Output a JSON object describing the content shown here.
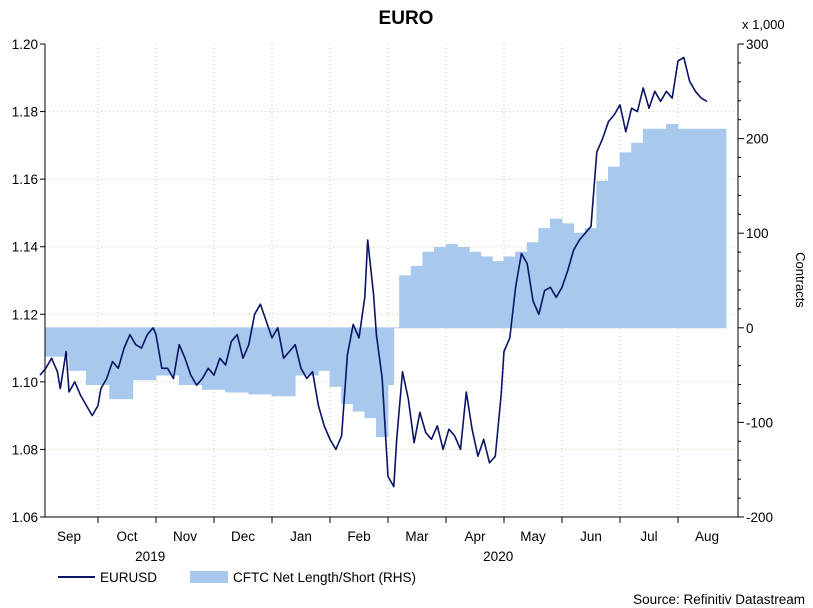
{
  "chart_data": {
    "type": "line",
    "title": "EURO",
    "source": "Source: Refinitiv Datastream",
    "left_axis": {
      "ylim": [
        1.06,
        1.2
      ],
      "ticks": [
        "1.06",
        "1.08",
        "1.10",
        "1.12",
        "1.14",
        "1.16",
        "1.18",
        "1.20"
      ]
    },
    "right_axis": {
      "label": "Contracts",
      "multiplier": "x 1,000",
      "ylim": [
        -200,
        300
      ],
      "ticks": [
        "-200",
        "-100",
        "0",
        "100",
        "200",
        "300"
      ]
    },
    "months": [
      "Sep",
      "Oct",
      "Nov",
      "Dec",
      "Jan",
      "Feb",
      "Mar",
      "Apr",
      "May",
      "Jun",
      "Jul",
      "Aug"
    ],
    "years": [
      "2019",
      "2020"
    ],
    "legend": [
      "EURUSD",
      "CFTC Net Length/Short (RHS)"
    ],
    "series": [
      {
        "name": "EURUSD",
        "axis": "left",
        "color": "#0a1464",
        "x": [
          0.0,
          0.1,
          0.2,
          0.3,
          0.35,
          0.45,
          0.5,
          0.6,
          0.7,
          0.8,
          0.9,
          1.0,
          1.05,
          1.15,
          1.25,
          1.35,
          1.45,
          1.55,
          1.65,
          1.75,
          1.85,
          1.95,
          2.0,
          2.1,
          2.2,
          2.3,
          2.4,
          2.5,
          2.6,
          2.7,
          2.8,
          2.9,
          3.0,
          3.1,
          3.2,
          3.3,
          3.4,
          3.5,
          3.6,
          3.7,
          3.8,
          3.9,
          4.0,
          4.1,
          4.2,
          4.3,
          4.4,
          4.5,
          4.6,
          4.7,
          4.8,
          4.9,
          5.0,
          5.1,
          5.2,
          5.3,
          5.4,
          5.5,
          5.6,
          5.65,
          5.75,
          5.8,
          5.9,
          6.0,
          6.1,
          6.15,
          6.25,
          6.35,
          6.45,
          6.55,
          6.65,
          6.75,
          6.85,
          6.95,
          7.05,
          7.15,
          7.25,
          7.35,
          7.45,
          7.55,
          7.65,
          7.75,
          7.85,
          7.95,
          8.0,
          8.1,
          8.2,
          8.3,
          8.4,
          8.5,
          8.6,
          8.7,
          8.8,
          8.9,
          9.0,
          9.1,
          9.2,
          9.3,
          9.4,
          9.5,
          9.6,
          9.7,
          9.8,
          9.9,
          10.0,
          10.1,
          10.2,
          10.3,
          10.4,
          10.5,
          10.6,
          10.7,
          10.8,
          10.9,
          11.0,
          11.1,
          11.2,
          11.3,
          11.4,
          11.5
        ],
        "values": [
          1.102,
          1.104,
          1.107,
          1.103,
          1.098,
          1.109,
          1.097,
          1.1,
          1.096,
          1.093,
          1.09,
          1.093,
          1.098,
          1.101,
          1.106,
          1.104,
          1.11,
          1.114,
          1.111,
          1.11,
          1.114,
          1.116,
          1.114,
          1.104,
          1.104,
          1.101,
          1.111,
          1.107,
          1.102,
          1.099,
          1.101,
          1.104,
          1.102,
          1.107,
          1.105,
          1.112,
          1.114,
          1.107,
          1.111,
          1.12,
          1.123,
          1.118,
          1.113,
          1.116,
          1.107,
          1.109,
          1.111,
          1.104,
          1.101,
          1.103,
          1.093,
          1.087,
          1.083,
          1.08,
          1.084,
          1.108,
          1.117,
          1.113,
          1.125,
          1.142,
          1.126,
          1.114,
          1.101,
          1.072,
          1.069,
          1.083,
          1.103,
          1.095,
          1.082,
          1.091,
          1.085,
          1.083,
          1.087,
          1.08,
          1.086,
          1.084,
          1.08,
          1.097,
          1.086,
          1.078,
          1.083,
          1.076,
          1.078,
          1.096,
          1.109,
          1.113,
          1.128,
          1.138,
          1.135,
          1.124,
          1.12,
          1.127,
          1.128,
          1.125,
          1.128,
          1.133,
          1.139,
          1.142,
          1.144,
          1.146,
          1.168,
          1.172,
          1.177,
          1.179,
          1.182,
          1.174,
          1.181,
          1.18,
          1.187,
          1.181,
          1.186,
          1.183,
          1.186,
          1.184,
          1.195,
          1.196,
          1.189,
          1.186,
          1.184,
          1.183
        ]
      },
      {
        "name": "CFTC Net Length/Short (RHS)",
        "axis": "right",
        "color": "#a8c8ee",
        "x": [
          0.0,
          0.5,
          0.8,
          1.2,
          1.6,
          2.0,
          2.4,
          2.8,
          3.2,
          3.6,
          4.0,
          4.4,
          4.8,
          5.0,
          5.2,
          5.4,
          5.6,
          5.8,
          6.0,
          6.1,
          6.2,
          6.4,
          6.6,
          6.8,
          7.0,
          7.2,
          7.4,
          7.6,
          7.8,
          8.0,
          8.2,
          8.4,
          8.6,
          8.8,
          9.0,
          9.2,
          9.4,
          9.6,
          9.8,
          10.0,
          10.2,
          10.4,
          10.6,
          10.8,
          11.0,
          11.2,
          11.4,
          11.6
        ],
        "values": [
          -30,
          -45,
          -60,
          -75,
          -55,
          -50,
          -60,
          -65,
          -68,
          -70,
          -72,
          -50,
          -45,
          -62,
          -80,
          -88,
          -95,
          -115,
          -60,
          0,
          55,
          65,
          80,
          85,
          88,
          85,
          80,
          75,
          70,
          75,
          80,
          90,
          105,
          115,
          110,
          100,
          105,
          155,
          170,
          185,
          195,
          210,
          210,
          215,
          210,
          210,
          210,
          210
        ]
      }
    ]
  }
}
